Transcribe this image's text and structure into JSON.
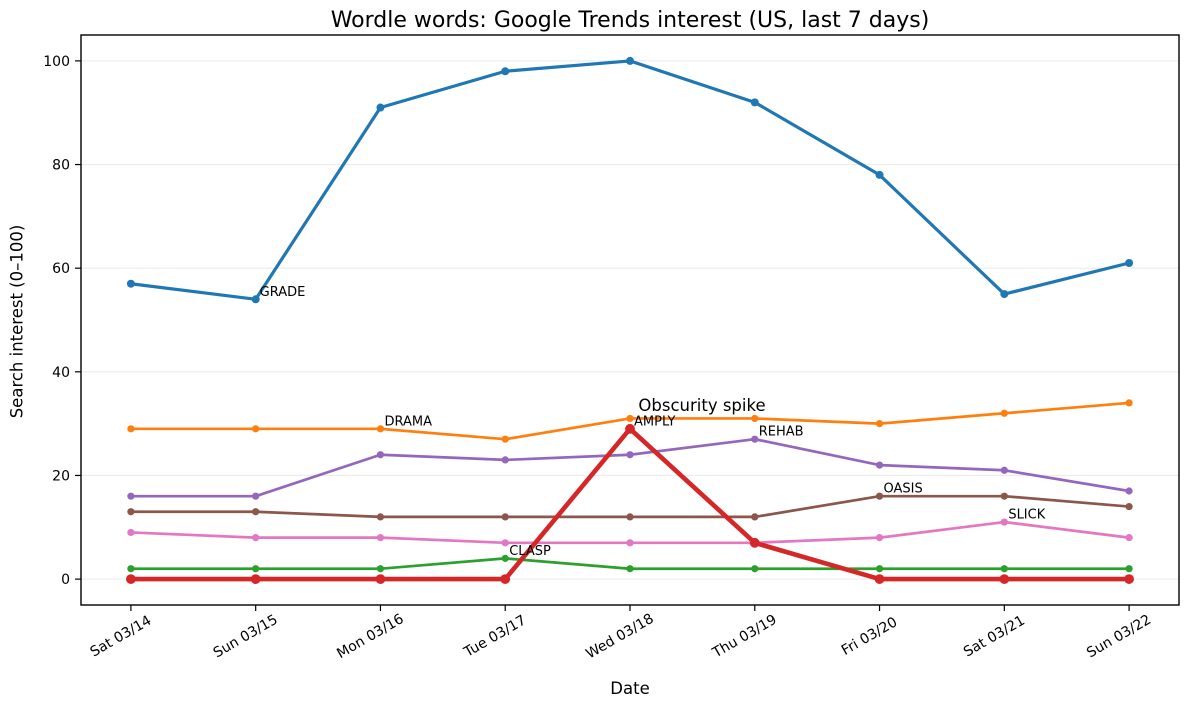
{
  "figure": {
    "title": "Wordle words: Google Trends interest (US, last 7 days)",
    "xlabel": "Date",
    "ylabel": "Search interest (0–100)"
  },
  "chart_data": {
    "type": "line",
    "title": "Wordle words: Google Trends interest (US, last 7 days)",
    "xlabel": "Date",
    "ylabel": "Search interest (0–100)",
    "categories": [
      "Sat 03/14",
      "Sun 03/15",
      "Mon 03/16",
      "Tue 03/17",
      "Wed 03/18",
      "Thu 03/19",
      "Fri 03/20",
      "Sat 03/21",
      "Sun 03/22"
    ],
    "yticks": [
      0,
      20,
      40,
      60,
      80,
      100
    ],
    "ylim": [
      -5,
      105
    ],
    "x_margin_units": 0.4,
    "grid": "horizontal",
    "grid_color": "#ececec",
    "spine_color": "#000000",
    "tick_label_color": "#000000",
    "legend": "none",
    "series": [
      {
        "name": "GRADE",
        "color": "#1f77b4",
        "line_width": 3.2,
        "marker_radius": 4.0,
        "values": [
          57,
          54,
          91,
          98,
          100,
          92,
          78,
          55,
          61
        ],
        "label_at_index": 1
      },
      {
        "name": "DRAMA",
        "color": "#ff7f0e",
        "line_width": 2.7,
        "marker_radius": 3.6,
        "values": [
          29,
          29,
          29,
          27,
          31,
          31,
          30,
          32,
          34
        ],
        "label_at_index": 2
      },
      {
        "name": "REHAB",
        "color": "#9467bd",
        "line_width": 2.7,
        "marker_radius": 3.6,
        "values": [
          16,
          16,
          24,
          23,
          24,
          27,
          22,
          21,
          17
        ],
        "label_at_index": 5
      },
      {
        "name": "OASIS",
        "color": "#8c564b",
        "line_width": 2.7,
        "marker_radius": 3.6,
        "values": [
          13,
          13,
          12,
          12,
          12,
          12,
          16,
          16,
          14
        ],
        "label_at_index": 6
      },
      {
        "name": "SLICK",
        "color": "#e377c2",
        "line_width": 2.7,
        "marker_radius": 3.6,
        "values": [
          9,
          8,
          8,
          7,
          7,
          7,
          8,
          11,
          8
        ],
        "label_at_index": 7
      },
      {
        "name": "CLASP",
        "color": "#2ca02c",
        "line_width": 2.7,
        "marker_radius": 3.6,
        "values": [
          2,
          2,
          2,
          4,
          2,
          2,
          2,
          2,
          2
        ],
        "label_at_index": 3
      },
      {
        "name": "AMPLY",
        "color": "#d62728",
        "line_width": 4.6,
        "marker_radius": 4.9,
        "values": [
          0,
          0,
          0,
          0,
          29,
          7,
          0,
          0,
          0
        ],
        "label_at_index": 4
      }
    ],
    "point_label_offset": {
      "dx": 4,
      "dy": -3.5
    },
    "point_label_font_px": 13,
    "annotation": {
      "text": "Obscurity spike",
      "series": "AMPLY",
      "point_index": 4,
      "dx": 72,
      "dy": -18,
      "font_px": 16.5
    }
  }
}
